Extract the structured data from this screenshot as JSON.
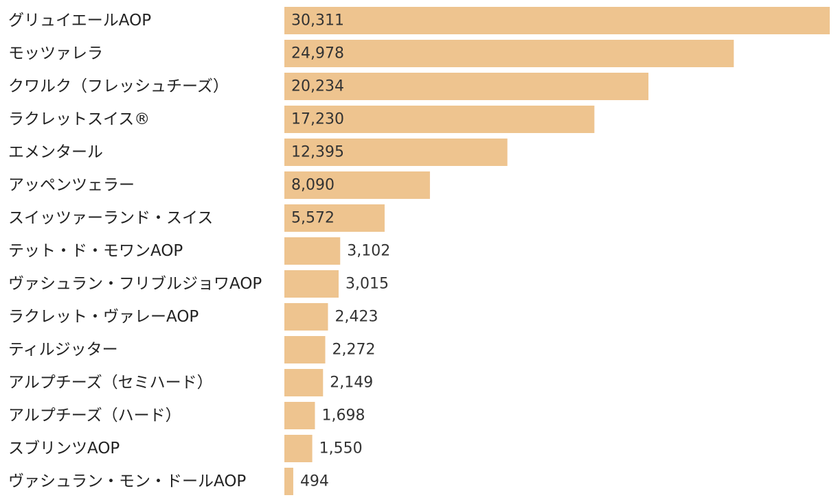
{
  "chart_data": {
    "type": "bar",
    "orientation": "horizontal",
    "bar_color": "#EEC48F",
    "categories": [
      "グリュイエールAOP",
      "モッツァレラ",
      "クワルク（フレッシュチーズ）",
      "ラクレットスイス®",
      "エメンタール",
      "アッペンツェラー",
      "スイッツァーランド・スイス",
      "テット・ド・モワンAOP",
      "ヴァシュラン・フリブルジョワAOP",
      "ラクレット・ヴァレーAOP",
      "ティルジッター",
      "アルプチーズ（セミハード）",
      "アルプチーズ（ハード）",
      "スブリンツAOP",
      "ヴァシュラン・モン・ドールAOP"
    ],
    "values": [
      30311,
      24978,
      20234,
      17230,
      12395,
      8090,
      5572,
      3102,
      3015,
      2423,
      2272,
      2149,
      1698,
      1550,
      494
    ],
    "value_labels": [
      "30,311",
      "24,978",
      "20,234",
      "17,230",
      "12,395",
      "8,090",
      "5,572",
      "3,102",
      "3,015",
      "2,423",
      "2,272",
      "2,149",
      "1,698",
      "1,550",
      "494"
    ],
    "xlim": [
      0,
      30311
    ],
    "grid": false,
    "legend": "none"
  }
}
